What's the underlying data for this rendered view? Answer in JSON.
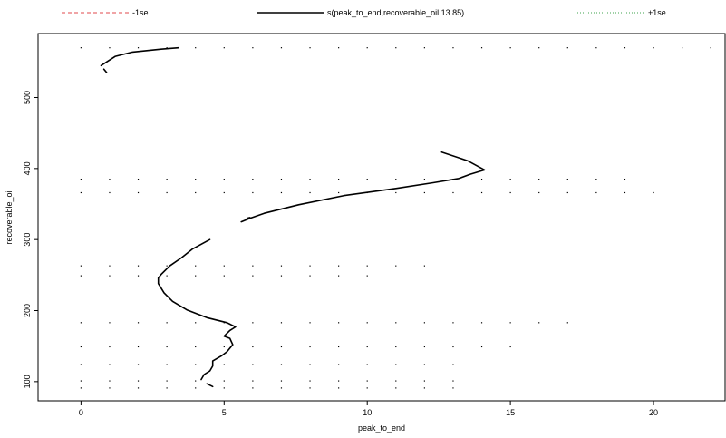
{
  "chart_data": {
    "type": "line",
    "title": "",
    "xlabel": "peak_to_end",
    "ylabel": "recoverable_oil",
    "xlim": [
      -1.5,
      22.5
    ],
    "ylim": [
      73,
      590
    ],
    "xticks": [
      0,
      5,
      10,
      15,
      20
    ],
    "yticks": [
      100,
      200,
      300,
      400,
      500
    ],
    "grid": false,
    "legend_position": "top",
    "legend": [
      {
        "label": "-1se",
        "style": "dashed",
        "color": "#e0484d"
      },
      {
        "label": "s(peak_to_end,recoverable_oil,13.85)",
        "style": "solid",
        "color": "#000000"
      },
      {
        "label": "+1se",
        "style": "dotted",
        "color": "#3fa34d"
      }
    ],
    "series": [
      {
        "name": "s(peak_to_end,recoverable_oil,13.85)",
        "segments": [
          [
            [
              3.4,
              570
            ],
            [
              2.8,
              568
            ],
            [
              1.8,
              564
            ],
            [
              1.2,
              558
            ],
            [
              0.7,
              545
            ]
          ],
          [
            [
              0.8,
              540
            ],
            [
              0.9,
              535
            ]
          ],
          [
            [
              12.6,
              423
            ],
            [
              13.5,
              411
            ],
            [
              14.1,
              398
            ],
            [
              13.6,
              392
            ],
            [
              13.2,
              386
            ],
            [
              12.3,
              380
            ],
            [
              11.0,
              372
            ],
            [
              9.2,
              362
            ],
            [
              7.6,
              349
            ],
            [
              6.4,
              337
            ],
            [
              5.9,
              330
            ],
            [
              5.6,
              325
            ]
          ],
          [
            [
              5.8,
              330
            ],
            [
              5.9,
              331
            ]
          ],
          [
            [
              4.5,
              300
            ],
            [
              3.9,
              287
            ],
            [
              3.5,
              274
            ],
            [
              3.1,
              263
            ],
            [
              2.8,
              251
            ],
            [
              2.7,
              246
            ],
            [
              2.7,
              238
            ],
            [
              2.9,
              225
            ],
            [
              3.2,
              213
            ],
            [
              3.7,
              201
            ],
            [
              4.4,
              190
            ],
            [
              5.1,
              183
            ],
            [
              5.4,
              177
            ],
            [
              5.2,
              172
            ],
            [
              5.0,
              164
            ],
            [
              5.2,
              161
            ],
            [
              5.3,
              152
            ],
            [
              5.1,
              142
            ],
            [
              4.9,
              136
            ],
            [
              4.6,
              129
            ],
            [
              4.6,
              122
            ],
            [
              4.5,
              115
            ],
            [
              4.3,
              110
            ],
            [
              4.2,
              103
            ]
          ],
          [
            [
              4.4,
              97
            ],
            [
              4.6,
              93
            ]
          ]
        ]
      }
    ],
    "data_grid": {
      "y_rows": [
        570,
        385,
        366,
        263,
        249,
        183,
        149,
        124,
        101,
        91
      ],
      "x_max_per_row": [
        22,
        19,
        20,
        12,
        10,
        17,
        15,
        13,
        13,
        13
      ]
    }
  }
}
